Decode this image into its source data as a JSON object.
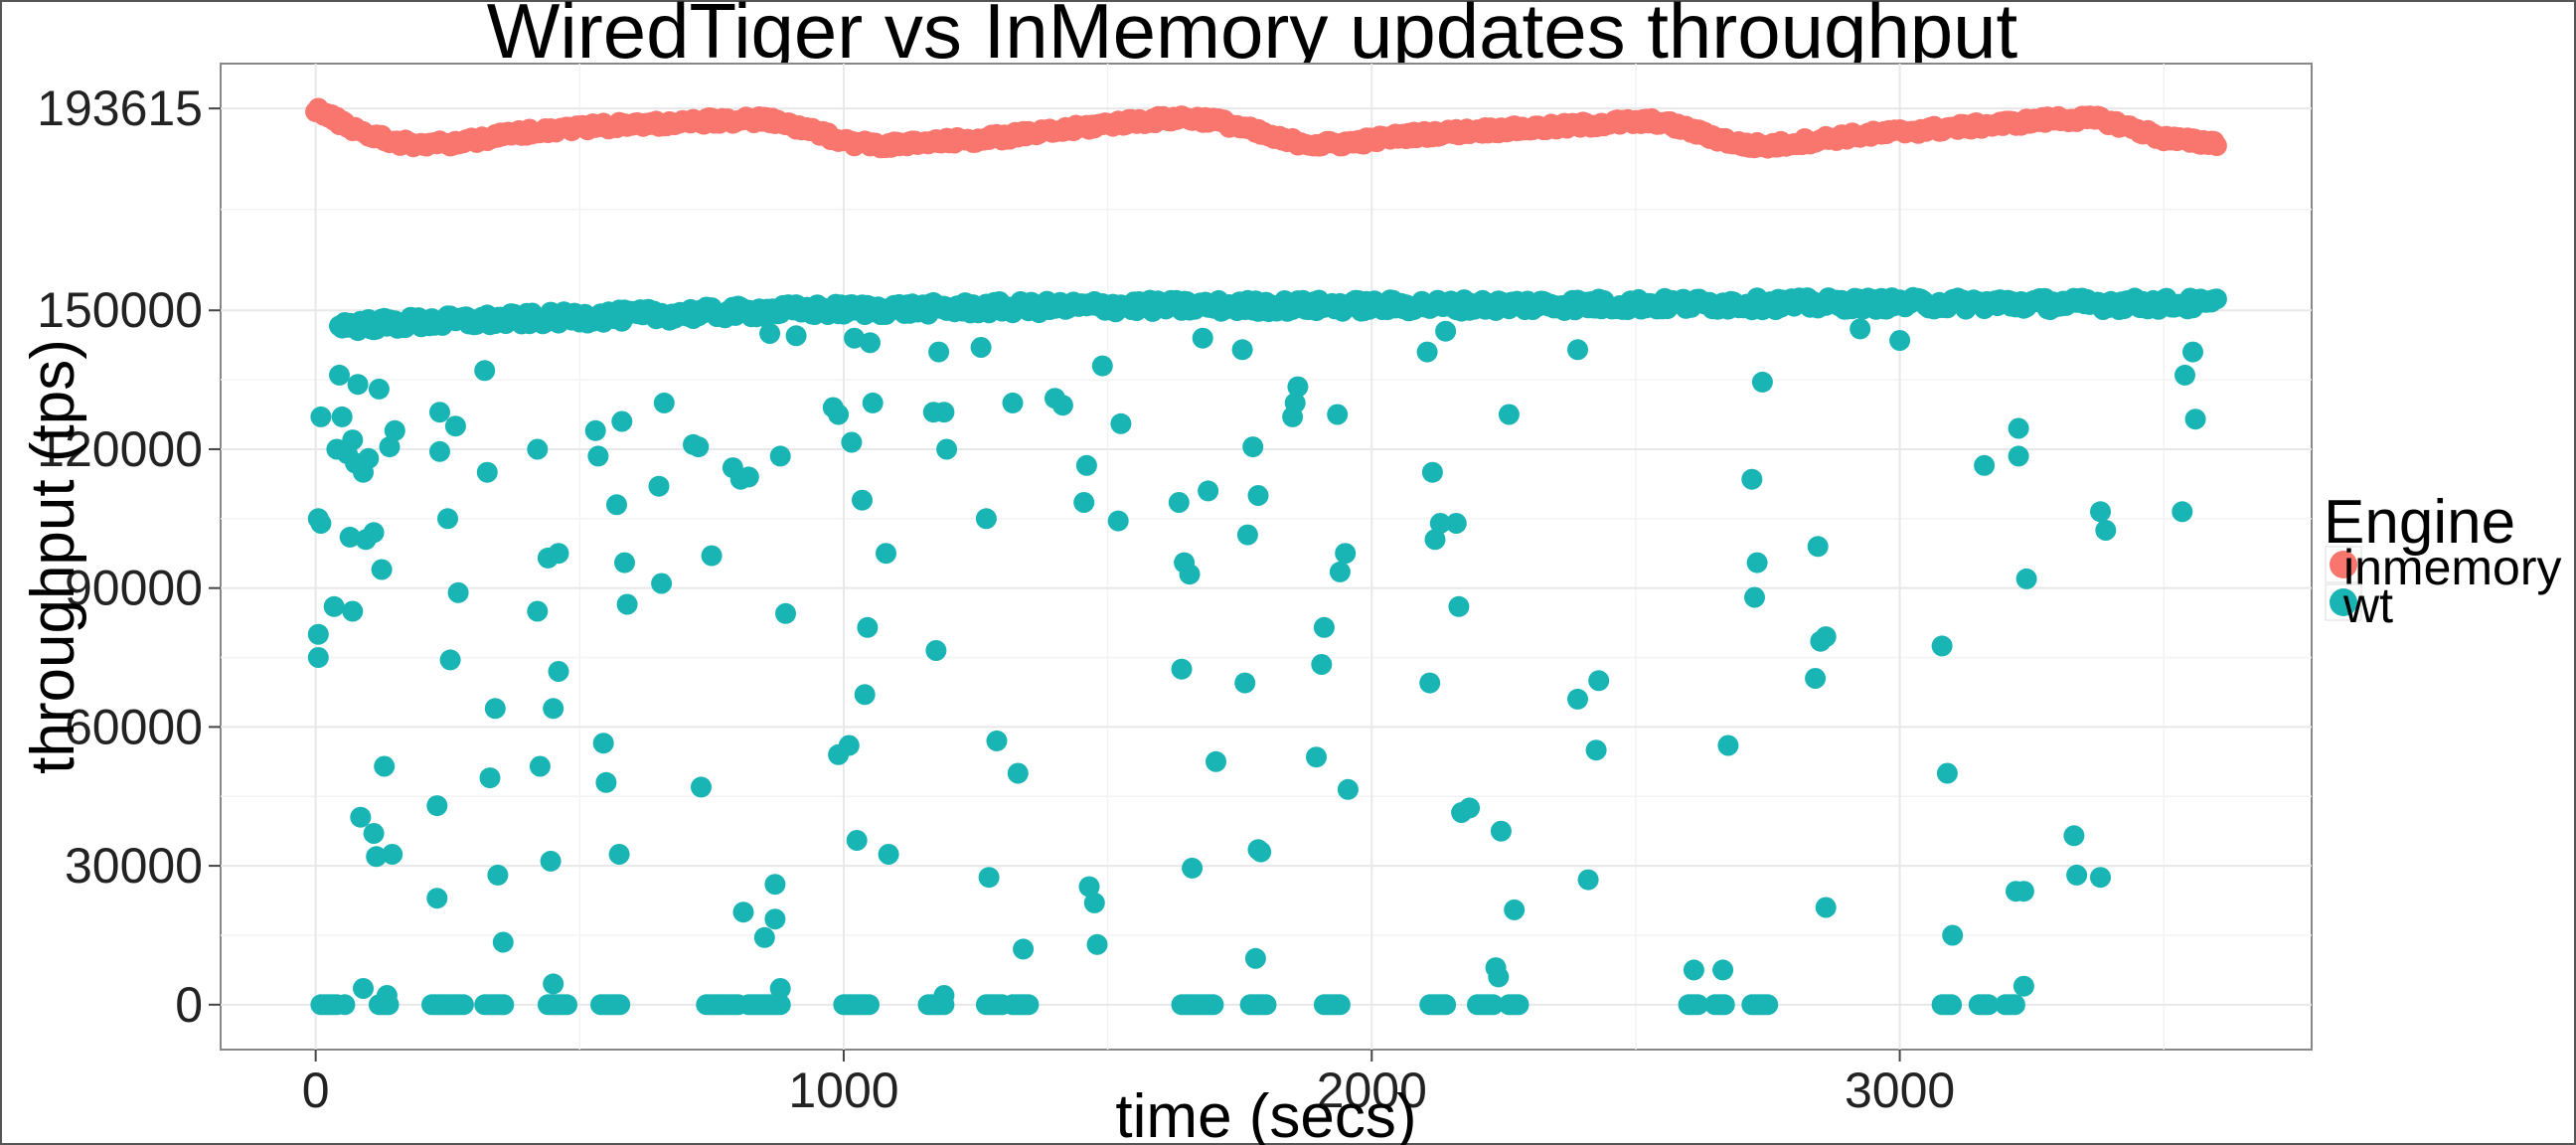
{
  "chart_data": {
    "type": "scatter",
    "title": "WiredTiger vs InMemory updates throughput",
    "xlabel": "time (secs)",
    "ylabel": "throughput (tps)",
    "xlim": [
      -180,
      3780
    ],
    "ylim": [
      -9700,
      203300
    ],
    "x_ticks": [
      0,
      1000,
      2000,
      3000
    ],
    "y_ticks": [
      0,
      30000,
      60000,
      90000,
      120000,
      150000,
      193615
    ],
    "grid": true,
    "legend": {
      "title": "Engine",
      "placement": "right",
      "entries": [
        {
          "label": "inmemory",
          "color": "#F8766D"
        },
        {
          "label": "wt",
          "color": "#19B5B5"
        }
      ]
    },
    "series": [
      {
        "name": "inmemory",
        "color": "#F8766D",
        "pattern": "wave",
        "x_range": [
          0,
          3600
        ],
        "step": 5,
        "points": [
          [
            0,
            193600
          ],
          [
            20,
            192200
          ],
          [
            60,
            189900
          ],
          [
            100,
            188000
          ],
          [
            150,
            186400
          ],
          [
            200,
            185800
          ],
          [
            260,
            186100
          ],
          [
            330,
            187400
          ],
          [
            420,
            188800
          ],
          [
            520,
            189700
          ],
          [
            650,
            190300
          ],
          [
            760,
            191000
          ],
          [
            850,
            191200
          ],
          [
            900,
            190000
          ],
          [
            960,
            188000
          ],
          [
            1020,
            186200
          ],
          [
            1080,
            185600
          ],
          [
            1160,
            186200
          ],
          [
            1280,
            187200
          ],
          [
            1400,
            188700
          ],
          [
            1520,
            190500
          ],
          [
            1640,
            191600
          ],
          [
            1700,
            191100
          ],
          [
            1760,
            189300
          ],
          [
            1830,
            186800
          ],
          [
            1900,
            185800
          ],
          [
            1960,
            186200
          ],
          [
            2060,
            187700
          ],
          [
            2200,
            188800
          ],
          [
            2350,
            189600
          ],
          [
            2470,
            190600
          ],
          [
            2540,
            190800
          ],
          [
            2590,
            189400
          ],
          [
            2640,
            187600
          ],
          [
            2700,
            185800
          ],
          [
            2750,
            185500
          ],
          [
            2800,
            186200
          ],
          [
            2900,
            187600
          ],
          [
            3050,
            189000
          ],
          [
            3200,
            190300
          ],
          [
            3300,
            191400
          ],
          [
            3380,
            191300
          ],
          [
            3440,
            189300
          ],
          [
            3500,
            187200
          ],
          [
            3560,
            186400
          ],
          [
            3600,
            186200
          ]
        ]
      },
      {
        "name": "wt",
        "color": "#19B5B5",
        "pattern": "steady-with-drops",
        "steady_band": [
          [
            50,
            146700
          ],
          [
            200,
            147400
          ],
          [
            500,
            148500
          ],
          [
            900,
            150000
          ],
          [
            1500,
            150900
          ],
          [
            2000,
            151000
          ],
          [
            2500,
            151300
          ],
          [
            3000,
            151500
          ],
          [
            3600,
            151400
          ]
        ],
        "scattered_points": [
          [
            5,
            80000
          ],
          [
            5,
            75000
          ],
          [
            5,
            105000
          ],
          [
            10,
            104000
          ],
          [
            10,
            127000
          ],
          [
            35,
            86000
          ],
          [
            40,
            120000
          ],
          [
            45,
            136000
          ],
          [
            50,
            127000
          ],
          [
            60,
            119000
          ],
          [
            65,
            101000
          ],
          [
            70,
            122000
          ],
          [
            70,
            85000
          ],
          [
            75,
            117000
          ],
          [
            80,
            134000
          ],
          [
            85,
            40500
          ],
          [
            90,
            115000
          ],
          [
            95,
            100500
          ],
          [
            100,
            118000
          ],
          [
            110,
            102000
          ],
          [
            110,
            37000
          ],
          [
            115,
            32000
          ],
          [
            120,
            133000
          ],
          [
            125,
            94000
          ],
          [
            130,
            51500
          ],
          [
            140,
            120500
          ],
          [
            145,
            32500
          ],
          [
            150,
            124000
          ],
          [
            230,
            43000
          ],
          [
            230,
            23000
          ],
          [
            235,
            119500
          ],
          [
            235,
            128000
          ],
          [
            250,
            105000
          ],
          [
            255,
            74500
          ],
          [
            265,
            125000
          ],
          [
            270,
            89000
          ],
          [
            320,
            137000
          ],
          [
            325,
            115000
          ],
          [
            330,
            49000
          ],
          [
            340,
            64000
          ],
          [
            345,
            28000
          ],
          [
            355,
            13500
          ],
          [
            420,
            120000
          ],
          [
            420,
            85000
          ],
          [
            425,
            51500
          ],
          [
            440,
            96500
          ],
          [
            445,
            31000
          ],
          [
            450,
            64000
          ],
          [
            460,
            97500
          ],
          [
            460,
            72000
          ],
          [
            530,
            124000
          ],
          [
            535,
            118500
          ],
          [
            545,
            56500
          ],
          [
            550,
            48000
          ],
          [
            570,
            108000
          ],
          [
            575,
            32500
          ],
          [
            580,
            126000
          ],
          [
            585,
            95500
          ],
          [
            590,
            86500
          ],
          [
            650,
            112000
          ],
          [
            655,
            91000
          ],
          [
            660,
            130000
          ],
          [
            715,
            121000
          ],
          [
            725,
            120500
          ],
          [
            730,
            47000
          ],
          [
            750,
            97000
          ],
          [
            790,
            116000
          ],
          [
            805,
            113500
          ],
          [
            810,
            20000
          ],
          [
            820,
            114000
          ],
          [
            850,
            14500
          ],
          [
            860,
            145000
          ],
          [
            870,
            26000
          ],
          [
            870,
            18500
          ],
          [
            880,
            118500
          ],
          [
            890,
            84500
          ],
          [
            980,
            129000
          ],
          [
            990,
            127500
          ],
          [
            990,
            54000
          ],
          [
            1010,
            56000
          ],
          [
            1015,
            121500
          ],
          [
            1020,
            144000
          ],
          [
            1025,
            35500
          ],
          [
            1035,
            109000
          ],
          [
            1040,
            67000
          ],
          [
            1045,
            81500
          ],
          [
            1050,
            143000
          ],
          [
            1055,
            130000
          ],
          [
            1080,
            97500
          ],
          [
            1085,
            32500
          ],
          [
            1170,
            128000
          ],
          [
            1175,
            76500
          ],
          [
            1180,
            141000
          ],
          [
            1190,
            128000
          ],
          [
            1195,
            120000
          ],
          [
            1260,
            142000
          ],
          [
            1270,
            105000
          ],
          [
            1275,
            27500
          ],
          [
            1290,
            57000
          ],
          [
            1320,
            130000
          ],
          [
            1330,
            50000
          ],
          [
            1340,
            12000
          ],
          [
            1400,
            131000
          ],
          [
            1415,
            129500
          ],
          [
            1455,
            108500
          ],
          [
            1460,
            116500
          ],
          [
            1465,
            25500
          ],
          [
            1475,
            22000
          ],
          [
            1480,
            13000
          ],
          [
            1490,
            138000
          ],
          [
            1520,
            104500
          ],
          [
            1525,
            125500
          ],
          [
            1635,
            108500
          ],
          [
            1640,
            72500
          ],
          [
            1645,
            95500
          ],
          [
            1655,
            93000
          ],
          [
            1660,
            29500
          ],
          [
            1680,
            144000
          ],
          [
            1690,
            111000
          ],
          [
            1705,
            52500
          ],
          [
            1755,
            141500
          ],
          [
            1760,
            69500
          ],
          [
            1765,
            101500
          ],
          [
            1775,
            120500
          ],
          [
            1785,
            110000
          ],
          [
            1785,
            33500
          ],
          [
            1790,
            33000
          ],
          [
            1780,
            10000
          ],
          [
            1850,
            127000
          ],
          [
            1855,
            130000
          ],
          [
            1860,
            133500
          ],
          [
            1895,
            53500
          ],
          [
            1905,
            73500
          ],
          [
            1910,
            81500
          ],
          [
            1935,
            127500
          ],
          [
            1940,
            93500
          ],
          [
            1950,
            97500
          ],
          [
            1955,
            46500
          ],
          [
            2105,
            141000
          ],
          [
            2110,
            69500
          ],
          [
            2115,
            115000
          ],
          [
            2120,
            100500
          ],
          [
            2130,
            104000
          ],
          [
            2140,
            145500
          ],
          [
            2160,
            104000
          ],
          [
            2165,
            86000
          ],
          [
            2170,
            41500
          ],
          [
            2185,
            42500
          ],
          [
            2245,
            37500
          ],
          [
            2260,
            127500
          ],
          [
            2270,
            20500
          ],
          [
            2240,
            6000
          ],
          [
            2235,
            8000
          ],
          [
            2390,
            141500
          ],
          [
            2390,
            66000
          ],
          [
            2410,
            27000
          ],
          [
            2425,
            55000
          ],
          [
            2430,
            70000
          ],
          [
            2675,
            56000
          ],
          [
            2720,
            113500
          ],
          [
            2725,
            88000
          ],
          [
            2730,
            95500
          ],
          [
            2740,
            134500
          ],
          [
            2840,
            70500
          ],
          [
            2845,
            99000
          ],
          [
            2850,
            78500
          ],
          [
            2860,
            79500
          ],
          [
            2860,
            21000
          ],
          [
            3080,
            77500
          ],
          [
            3090,
            50000
          ],
          [
            3100,
            15000
          ],
          [
            3160,
            116500
          ],
          [
            3220,
            24500
          ],
          [
            3225,
            118500
          ],
          [
            3225,
            124500
          ],
          [
            3235,
            24500
          ],
          [
            3240,
            92000
          ],
          [
            3235,
            4000
          ],
          [
            3330,
            36500
          ],
          [
            3335,
            28000
          ],
          [
            3380,
            27500
          ],
          [
            3380,
            106500
          ],
          [
            3390,
            102500
          ],
          [
            3535,
            106500
          ],
          [
            3540,
            136000
          ],
          [
            3555,
            141000
          ],
          [
            3560,
            126500
          ],
          [
            2610,
            7500
          ],
          [
            2665,
            7500
          ],
          [
            90,
            3500
          ],
          [
            135,
            2000
          ],
          [
            1190,
            2000
          ],
          [
            880,
            3500
          ],
          [
            450,
            4500
          ],
          [
            3000,
            143500
          ],
          [
            2925,
            146000
          ],
          [
            910,
            144500
          ]
        ],
        "zero_clusters": [
          [
            10,
            40
          ],
          [
            55,
            60
          ],
          [
            120,
            140
          ],
          [
            220,
            280
          ],
          [
            320,
            360
          ],
          [
            440,
            480
          ],
          [
            540,
            580
          ],
          [
            740,
            800
          ],
          [
            820,
            880
          ],
          [
            1000,
            1050
          ],
          [
            1160,
            1190
          ],
          [
            1270,
            1300
          ],
          [
            1320,
            1350
          ],
          [
            1640,
            1700
          ],
          [
            1770,
            1800
          ],
          [
            1910,
            1940
          ],
          [
            2110,
            2140
          ],
          [
            2200,
            2230
          ],
          [
            2260,
            2280
          ],
          [
            2600,
            2620
          ],
          [
            2650,
            2670
          ],
          [
            2720,
            2750
          ],
          [
            3080,
            3100
          ],
          [
            3150,
            3170
          ],
          [
            3200,
            3220
          ]
        ]
      }
    ]
  }
}
